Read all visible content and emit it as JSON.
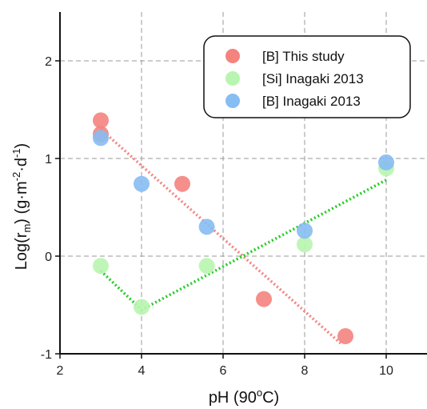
{
  "chart_data": {
    "type": "scatter",
    "xlabel": "pH (90°C)",
    "ylabel": "Log(rm) (g·m-2·d-1)",
    "xlim": [
      2,
      11
    ],
    "ylim": [
      -1,
      2.5
    ],
    "xticks": [
      2,
      4,
      6,
      8,
      10
    ],
    "yticks": [
      -1,
      0,
      1,
      2
    ],
    "grid": true,
    "legend_position": "top-right",
    "series": [
      {
        "name": "[B] This study",
        "color": "#f4837f",
        "points": [
          [
            3,
            1.39
          ],
          [
            3,
            1.25
          ],
          [
            5,
            0.74
          ],
          [
            7,
            -0.44
          ],
          [
            9,
            -0.82
          ]
        ],
        "trendline": [
          [
            3,
            1.3
          ],
          [
            8.9,
            -0.9
          ]
        ]
      },
      {
        "name": "[Si] Inagaki 2013",
        "color": "#b8f5b0",
        "points": [
          [
            3,
            -0.1
          ],
          [
            4,
            -0.52
          ],
          [
            5.6,
            -0.1
          ],
          [
            8,
            0.12
          ],
          [
            10,
            0.9
          ]
        ],
        "trendline": [
          [
            3,
            -0.15
          ],
          [
            4,
            -0.55
          ],
          [
            10,
            0.78
          ]
        ],
        "trendline_color": "#22cc22"
      },
      {
        "name": "[B] Inagaki 2013",
        "color": "#86bdf2",
        "points": [
          [
            3,
            1.21
          ],
          [
            4,
            0.74
          ],
          [
            5.6,
            0.3
          ],
          [
            8,
            0.26
          ],
          [
            10,
            0.96
          ]
        ]
      }
    ]
  },
  "axis": {
    "x_title": "pH (90",
    "x_title_sup": "o",
    "x_title_end": "C)",
    "y_title_pre": "Log(r",
    "y_title_sub": "m",
    "y_title_mid": ") (g·m",
    "y_title_sup1": "-2",
    "y_title_mid2": "·d",
    "y_title_sup2": "-1",
    "y_title_end": ")"
  },
  "legend": {
    "items": [
      "[B] This study",
      "[Si] Inagaki 2013",
      "[B] Inagaki 2013"
    ]
  }
}
